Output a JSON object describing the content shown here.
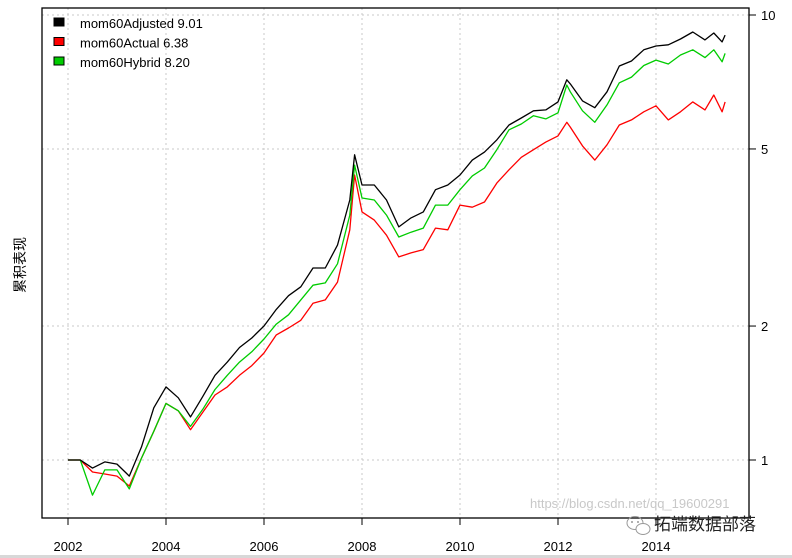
{
  "chart_data": {
    "type": "line",
    "title": "",
    "xlabel": "",
    "ylabel": "累积表现",
    "y_scale": "log",
    "ylim": [
      0.8,
      10.2
    ],
    "xlim": [
      2001.5,
      2015.9
    ],
    "y_ticks": [
      1,
      2,
      5,
      10
    ],
    "y_tick_labels": [
      "1",
      "2",
      "5",
      "10"
    ],
    "y_axis_side": "right",
    "x_ticks": [
      2002,
      2004,
      2006,
      2008,
      2010,
      2012,
      2014
    ],
    "x_tick_labels": [
      "2002",
      "2004",
      "2006",
      "2008",
      "2010",
      "2012",
      "2014"
    ],
    "grid": true,
    "legend_position": "top-left",
    "x": [
      2002,
      2002.25,
      2002.5,
      2002.75,
      2003,
      2003.25,
      2003.5,
      2003.75,
      2004,
      2004.25,
      2004.5,
      2004.75,
      2005,
      2005.25,
      2005.5,
      2005.75,
      2006,
      2006.25,
      2006.5,
      2006.75,
      2007,
      2007.25,
      2007.5,
      2007.75,
      2007.85,
      2008,
      2008.25,
      2008.5,
      2008.75,
      2009,
      2009.25,
      2009.5,
      2009.75,
      2010,
      2010.25,
      2010.5,
      2010.75,
      2011,
      2011.25,
      2011.5,
      2011.75,
      2012,
      2012.18,
      2012.25,
      2012.5,
      2012.75,
      2013,
      2013.25,
      2013.5,
      2013.75,
      2014,
      2014.25,
      2014.5,
      2014.75,
      2015.0,
      2015.18,
      2015.35,
      2015.41
    ],
    "series": [
      {
        "name": "mom60Adjusted 9.01",
        "color": "#000000",
        "values": [
          1.0,
          1.0,
          0.959,
          0.99,
          0.979,
          0.92,
          1.07,
          1.31,
          1.46,
          1.38,
          1.25,
          1.39,
          1.55,
          1.66,
          1.79,
          1.88,
          2.0,
          2.18,
          2.34,
          2.45,
          2.7,
          2.7,
          3.04,
          3.84,
          4.85,
          4.15,
          4.15,
          3.84,
          3.34,
          3.5,
          3.61,
          4.05,
          4.15,
          4.37,
          4.72,
          4.92,
          5.24,
          5.66,
          5.87,
          6.09,
          6.12,
          6.38,
          7.15,
          7.0,
          6.41,
          6.19,
          6.72,
          7.68,
          7.88,
          8.35,
          8.52,
          8.57,
          8.83,
          9.16,
          8.79,
          9.11,
          8.7,
          9.01
        ]
      },
      {
        "name": "mom60Actual 6.38",
        "color": "#ff0000",
        "values": [
          1.0,
          1.0,
          0.94,
          0.93,
          0.92,
          0.874,
          1.01,
          1.16,
          1.34,
          1.29,
          1.17,
          1.28,
          1.4,
          1.46,
          1.55,
          1.63,
          1.74,
          1.91,
          1.98,
          2.06,
          2.25,
          2.29,
          2.51,
          3.29,
          4.37,
          3.61,
          3.46,
          3.2,
          2.86,
          2.92,
          2.97,
          3.32,
          3.29,
          3.74,
          3.7,
          3.8,
          4.19,
          4.49,
          4.79,
          4.98,
          5.18,
          5.35,
          5.74,
          5.6,
          5.08,
          4.72,
          5.11,
          5.66,
          5.81,
          6.06,
          6.25,
          5.81,
          6.06,
          6.38,
          6.12,
          6.61,
          6.06,
          6.38
        ]
      },
      {
        "name": "mom60Hybrid 8.20",
        "color": "#00cc00",
        "values": [
          1.0,
          1.0,
          0.834,
          0.95,
          0.95,
          0.861,
          1.01,
          1.16,
          1.34,
          1.29,
          1.19,
          1.3,
          1.44,
          1.55,
          1.66,
          1.75,
          1.87,
          2.02,
          2.12,
          2.29,
          2.47,
          2.5,
          2.76,
          3.55,
          4.6,
          3.88,
          3.84,
          3.55,
          3.17,
          3.25,
          3.32,
          3.74,
          3.74,
          4.05,
          4.35,
          4.53,
          4.98,
          5.52,
          5.69,
          5.94,
          5.84,
          6.03,
          6.96,
          6.72,
          6.09,
          5.74,
          6.28,
          7.04,
          7.25,
          7.7,
          7.92,
          7.76,
          8.13,
          8.35,
          8.02,
          8.35,
          7.85,
          8.2
        ]
      }
    ]
  },
  "watermark": {
    "text": "拓端数据部落",
    "url": "https://blog.csdn.net/qq_19600291",
    "icon": "wechat-icon"
  }
}
